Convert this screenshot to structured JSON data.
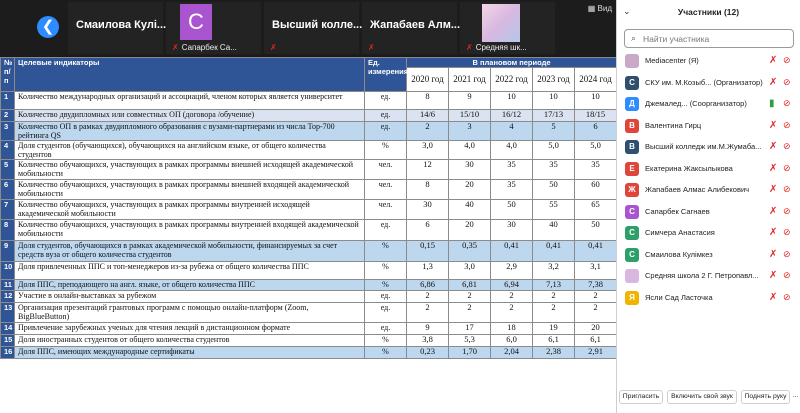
{
  "video_strip": {
    "back_icon": "❮",
    "view_label": "Вид",
    "tiles": [
      {
        "name": "Смаилова Кулі...",
        "sub": ""
      },
      {
        "name": "",
        "sub": "Сапарбек Са..."
      },
      {
        "name": "Высший колле...",
        "sub": ""
      },
      {
        "name": "Жапабаев Алм...",
        "sub": ""
      },
      {
        "name": "",
        "sub": "Средняя шк..."
      }
    ],
    "avatar_letter": "С"
  },
  "table": {
    "headers": {
      "num": "№ п/п",
      "indicator": "Целевые индикаторы",
      "unit": "Ед. измерения",
      "period": "В плановом периоде"
    },
    "years": [
      "2020 год",
      "2021 год",
      "2022 год",
      "2023 год",
      "2024 год"
    ],
    "rows": [
      {
        "n": "1",
        "text": "Количество международных организаций и ассоциаций, членом которых является университет",
        "unit": "ед.",
        "values": [
          "8",
          "9",
          "10",
          "10",
          "10"
        ],
        "style": ""
      },
      {
        "n": "2",
        "text": "Количество двудипломных или совместных ОП (договора /обучение)",
        "unit": "ед.",
        "values": [
          "14/6",
          "15/10",
          "16/12",
          "17/13",
          "18/15"
        ],
        "style": "shade"
      },
      {
        "n": "3",
        "text": "Количество ОП в рамках двудипломного образования с вузами-партнерами из числа Top-700 рейтинга QS",
        "unit": "ед.",
        "values": [
          "2",
          "3",
          "4",
          "5",
          "6"
        ],
        "style": "hl"
      },
      {
        "n": "4",
        "text": "Доля студентов (обучающихся), обучающихся на английском языке, от общего количества студентов",
        "unit": "%",
        "values": [
          "3,0",
          "4,0",
          "4,0",
          "5,0",
          "5,0"
        ],
        "style": ""
      },
      {
        "n": "5",
        "text": "Количество обучающихся, участвующих в рамках программы внешней исходящей академической мобильности",
        "unit": "чел.",
        "values": [
          "12",
          "30",
          "35",
          "35",
          "35"
        ],
        "style": ""
      },
      {
        "n": "6",
        "text": "Количество обучающихся, участвующих в рамках программы внешней входящей академической мобильности",
        "unit": "чел.",
        "values": [
          "8",
          "20",
          "35",
          "50",
          "60"
        ],
        "style": ""
      },
      {
        "n": "7",
        "text": "Количество обучающихся, участвующих в рамках программы внутренней исходящей академической мобильности",
        "unit": "чел.",
        "values": [
          "30",
          "40",
          "50",
          "55",
          "65"
        ],
        "style": ""
      },
      {
        "n": "8",
        "text": "Количество обучающихся, участвующих в рамках программы внутренней входящей академической мобильности",
        "unit": "ед.",
        "values": [
          "6",
          "20",
          "30",
          "40",
          "50"
        ],
        "style": ""
      },
      {
        "n": "9",
        "text": "Доля студентов, обучающихся в рамках академической мобильности, финансируемых за счет средств вуза от общего количества студентов",
        "unit": "%",
        "values": [
          "0,15",
          "0,35",
          "0,41",
          "0,41",
          "0,41"
        ],
        "style": "hl"
      },
      {
        "n": "10",
        "text": "Доля привлеченных ППС и топ-менеджеров из-за рубежа от общего количества ППС",
        "unit": "%",
        "values": [
          "1,3",
          "3,0",
          "2,9",
          "3,2",
          "3,1"
        ],
        "style": ""
      },
      {
        "n": "11",
        "text": "Доля ППС, преподающего на англ. языке, от общего количества ППС",
        "unit": "%",
        "values": [
          "6,86",
          "6,81",
          "6,94",
          "7,13",
          "7,38"
        ],
        "style": "hl"
      },
      {
        "n": "12",
        "text": "Участие в онлайн-выставках за рубежом",
        "unit": "ед.",
        "values": [
          "2",
          "2",
          "2",
          "2",
          "2"
        ],
        "style": ""
      },
      {
        "n": "13",
        "text": "Организация презентаций грантовых программ с помощью онлайн-платформ (Zoom, BigBlueButton)",
        "unit": "ед.",
        "values": [
          "2",
          "2",
          "2",
          "2",
          "2"
        ],
        "style": ""
      },
      {
        "n": "14",
        "text": "Привлечение зарубежных ученых для чтения лекций в дистанционном формате",
        "unit": "ед.",
        "values": [
          "9",
          "17",
          "18",
          "19",
          "20"
        ],
        "style": ""
      },
      {
        "n": "15",
        "text": "Доля иностранных студентов от общего количества студентов",
        "unit": "%",
        "values": [
          "3,8",
          "5,3",
          "6,0",
          "6,1",
          "6,1"
        ],
        "style": ""
      },
      {
        "n": "16",
        "text": "Доля ППС, имеющих международные сертификаты",
        "unit": "%",
        "values": [
          "0,23",
          "1,70",
          "2,04",
          "2,38",
          "2,91"
        ],
        "style": "hl"
      }
    ]
  },
  "panel": {
    "title": "Участники (12)",
    "collapse_icon": "⌄",
    "search_placeholder": "Найти участника",
    "search_icon": "⌕",
    "participants": [
      {
        "name": "Mediacenter (Я)",
        "letter": "",
        "color": "#c9a8c8",
        "mic": "muted",
        "cam": "off"
      },
      {
        "name": "СКУ им. М.Козыб... (Организатор)",
        "letter": "С",
        "color": "#2f4f6f",
        "mic": "muted",
        "cam": "off"
      },
      {
        "name": "Джемалед... (Соорганизатор)",
        "letter": "Д",
        "color": "#2d8cff",
        "mic": "on",
        "cam": "off"
      },
      {
        "name": "Валентина Гирц",
        "letter": "В",
        "color": "#e0453a",
        "mic": "muted",
        "cam": "off"
      },
      {
        "name": "Высший колледж им.М.Жумаба...",
        "letter": "В",
        "color": "#2f4f6f",
        "mic": "muted",
        "cam": "off"
      },
      {
        "name": "Екатерина Жаксылыкова",
        "letter": "Е",
        "color": "#e0453a",
        "mic": "muted",
        "cam": "off"
      },
      {
        "name": "Жапабаев Алмас Алибекович",
        "letter": "Ж",
        "color": "#e0453a",
        "mic": "muted",
        "cam": "off"
      },
      {
        "name": "Сапарбек Сагнаев",
        "letter": "С",
        "color": "#a855cf",
        "mic": "muted",
        "cam": "off"
      },
      {
        "name": "Симчера Анастасия",
        "letter": "С",
        "color": "#2e9e6a",
        "mic": "muted",
        "cam": "off"
      },
      {
        "name": "Смаилова Кулімкез",
        "letter": "С",
        "color": "#2e9e6a",
        "mic": "muted",
        "cam": "off"
      },
      {
        "name": "Средняя школа 2 Г. Петропавл...",
        "letter": "",
        "color": "#d8b8e0",
        "mic": "muted",
        "cam": "off"
      },
      {
        "name": "Ясли Сад Ласточка",
        "letter": "Я",
        "color": "#f0b400",
        "mic": "muted",
        "cam": "off"
      }
    ],
    "footer": {
      "invite": "Пригласить",
      "unmute": "Включить свой звук",
      "raise_hand": "Поднять руку",
      "more": "..."
    }
  }
}
